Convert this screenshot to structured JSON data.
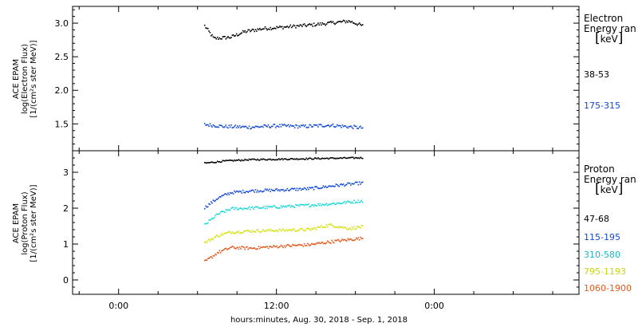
{
  "colors": {
    "black": "#000000",
    "blue": "#1148d6",
    "cyan": "#16d7d7",
    "yellow": "#d6e10d",
    "orange": "#e4561a"
  },
  "xaxis": {
    "label": "hours:minutes, Aug. 30, 2018 - Sep.  1, 2018",
    "range_hours": [
      -3.5,
      35.0
    ],
    "ticks": [
      {
        "value": 0,
        "label": "0:00"
      },
      {
        "value": 12,
        "label": "12:00"
      },
      {
        "value": 24,
        "label": "0:00"
      }
    ]
  },
  "chart_data": [
    {
      "type": "scatter",
      "panel": "top",
      "ylabel_lines": [
        "ACE EPAM",
        "log(Electron Flux)",
        "[1/(cm²s ster MeV)]"
      ],
      "ylim": [
        1.1,
        3.25
      ],
      "yticks": [
        1.5,
        2.0,
        2.5,
        3.0
      ],
      "ytick_labels": [
        "1.5",
        "2.0",
        "2.5",
        "3.0"
      ],
      "legend": {
        "title_lines": [
          "Electron",
          "Energy ran"
        ],
        "unit": "keV"
      },
      "series": [
        {
          "name": "38-53",
          "color": "black",
          "x_range": [
            6.5,
            18.5
          ],
          "shape": [
            [
              6.5,
              2.97
            ],
            [
              7.2,
              2.78
            ],
            [
              8.5,
              2.8
            ],
            [
              9.5,
              2.88
            ],
            [
              11.0,
              2.93
            ],
            [
              12.5,
              2.95
            ],
            [
              14.5,
              2.98
            ],
            [
              16.0,
              3.01
            ],
            [
              17.5,
              3.04
            ],
            [
              18.5,
              2.97
            ]
          ],
          "jitter": 0.025
        },
        {
          "name": "175-315",
          "color": "blue",
          "x_range": [
            6.5,
            18.5
          ],
          "shape": [
            [
              6.5,
              1.5
            ],
            [
              8.0,
              1.47
            ],
            [
              10.0,
              1.46
            ],
            [
              12.0,
              1.48
            ],
            [
              14.0,
              1.47
            ],
            [
              16.0,
              1.49
            ],
            [
              18.5,
              1.45
            ]
          ],
          "jitter": 0.025
        }
      ]
    },
    {
      "type": "scatter",
      "panel": "bottom",
      "ylabel_lines": [
        "ACE EPAM",
        "log(Proton Flux)",
        "[1/(cm²s ster MeV)]"
      ],
      "ylim": [
        -0.4,
        3.6
      ],
      "yticks": [
        0,
        1,
        2,
        3
      ],
      "ytick_labels": [
        "0",
        "1",
        "2",
        "3"
      ],
      "legend": {
        "title_lines": [
          "Proton",
          "Energy ran"
        ],
        "unit": "keV"
      },
      "series": [
        {
          "name": "47-68",
          "color": "black",
          "x_range": [
            6.5,
            18.5
          ],
          "shape": [
            [
              6.5,
              3.27
            ],
            [
              8.0,
              3.33
            ],
            [
              10.0,
              3.37
            ],
            [
              12.0,
              3.38
            ],
            [
              15.0,
              3.4
            ],
            [
              18.5,
              3.42
            ]
          ],
          "jitter": 0.02
        },
        {
          "name": "115-195",
          "color": "blue",
          "x_range": [
            6.5,
            18.5
          ],
          "shape": [
            [
              6.5,
              2.03
            ],
            [
              7.5,
              2.3
            ],
            [
              8.5,
              2.45
            ],
            [
              10.0,
              2.5
            ],
            [
              12.0,
              2.52
            ],
            [
              14.5,
              2.56
            ],
            [
              16.5,
              2.65
            ],
            [
              18.5,
              2.72
            ]
          ],
          "jitter": 0.04
        },
        {
          "name": "310-580",
          "color": "cyan",
          "x_range": [
            6.5,
            18.5
          ],
          "shape": [
            [
              6.5,
              1.55
            ],
            [
              7.5,
              1.85
            ],
            [
              8.5,
              2.0
            ],
            [
              10.0,
              2.02
            ],
            [
              12.0,
              2.05
            ],
            [
              14.5,
              2.1
            ],
            [
              16.5,
              2.15
            ],
            [
              18.5,
              2.22
            ]
          ],
          "jitter": 0.04
        },
        {
          "name": "795-1193",
          "color": "yellow",
          "x_range": [
            6.5,
            18.5
          ],
          "shape": [
            [
              6.5,
              1.05
            ],
            [
              7.5,
              1.25
            ],
            [
              8.5,
              1.35
            ],
            [
              10.0,
              1.38
            ],
            [
              12.0,
              1.4
            ],
            [
              14.5,
              1.42
            ],
            [
              16.0,
              1.55
            ],
            [
              17.5,
              1.45
            ],
            [
              18.5,
              1.5
            ]
          ],
          "jitter": 0.04
        },
        {
          "name": "1060-1900",
          "color": "orange",
          "x_range": [
            6.5,
            18.5
          ],
          "shape": [
            [
              6.5,
              0.52
            ],
            [
              7.5,
              0.78
            ],
            [
              8.5,
              0.92
            ],
            [
              10.0,
              0.9
            ],
            [
              12.0,
              0.95
            ],
            [
              14.5,
              1.0
            ],
            [
              16.5,
              1.1
            ],
            [
              18.5,
              1.18
            ]
          ],
          "jitter": 0.04
        }
      ]
    }
  ]
}
